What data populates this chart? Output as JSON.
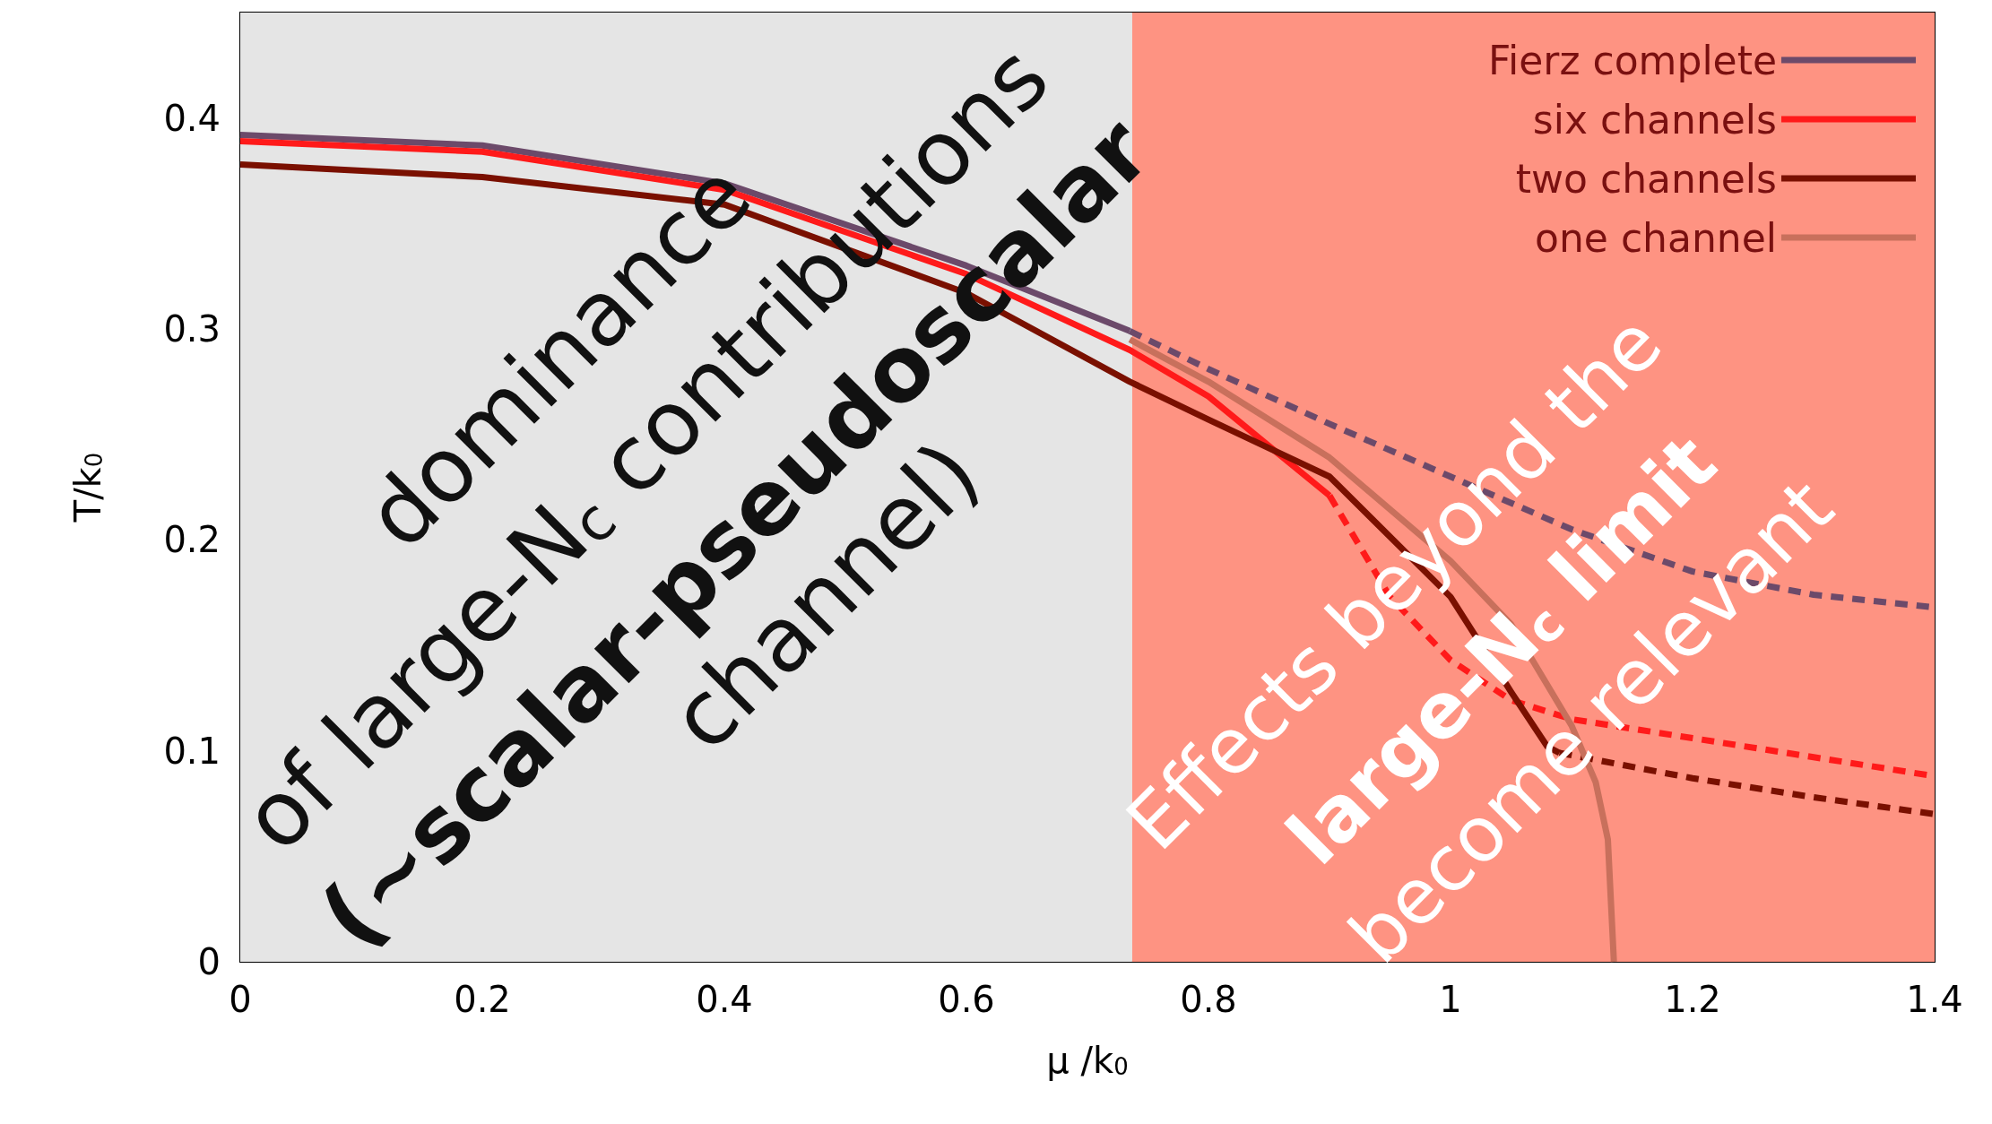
{
  "chart_data": {
    "type": "line",
    "xlabel": "μ /k$_{0}$",
    "ylabel": "T/k$_{0}$",
    "xlim": [
      0,
      1.4
    ],
    "xticks": [
      0,
      0.2,
      0.4,
      0.6,
      0.8,
      1,
      1.2,
      1.4
    ],
    "ylim": [
      0,
      0.45
    ],
    "yticks": [
      0,
      0.1,
      0.2,
      0.3,
      0.4
    ],
    "legend": "top right",
    "grid": false,
    "bands": [
      {
        "axis": "x",
        "from": 0,
        "to": 0.737,
        "color": "#e5e5e5"
      },
      {
        "axis": "x",
        "from": 0.737,
        "to": 1.4,
        "color": "#fe9382"
      }
    ],
    "series": [
      {
        "name": "Fierz complete",
        "color": "#6c4a6a",
        "line_style": "solid",
        "x": [
          0,
          0.2,
          0.4,
          0.6,
          0.735
        ],
        "values": [
          0.392,
          0.387,
          0.369,
          0.33,
          0.299
        ]
      },
      {
        "color": "#6c4a6a",
        "line_style": "dashed",
        "x": [
          0.735,
          0.8,
          0.9,
          1.0,
          1.1,
          1.2,
          1.3,
          1.4
        ],
        "values": [
          0.299,
          0.281,
          0.255,
          0.23,
          0.205,
          0.185,
          0.174,
          0.168
        ]
      },
      {
        "name": "six channels",
        "color": "#ff1a1a",
        "line_style": "solid",
        "x": [
          0,
          0.2,
          0.4,
          0.6,
          0.735,
          0.8,
          0.9
        ],
        "values": [
          0.389,
          0.384,
          0.366,
          0.326,
          0.29,
          0.268,
          0.221
        ]
      },
      {
        "color": "#ff1a1a",
        "line_style": "dashed",
        "x": [
          0.9,
          0.95,
          1.0,
          1.05,
          1.1,
          1.2,
          1.3,
          1.4
        ],
        "values": [
          0.221,
          0.173,
          0.143,
          0.124,
          0.115,
          0.106,
          0.097,
          0.088
        ]
      },
      {
        "name": "two channels",
        "color": "#7a1000",
        "line_style": "solid",
        "x": [
          0,
          0.2,
          0.4,
          0.6,
          0.735,
          0.8,
          0.9,
          1.0,
          1.05,
          1.08,
          1.09
        ],
        "values": [
          0.378,
          0.372,
          0.359,
          0.317,
          0.275,
          0.257,
          0.23,
          0.173,
          0.128,
          0.102,
          0.099
        ]
      },
      {
        "color": "#7a1000",
        "line_style": "dashed",
        "x": [
          1.09,
          1.2,
          1.3,
          1.4
        ],
        "values": [
          0.099,
          0.087,
          0.078,
          0.07
        ]
      },
      {
        "name": "one channel",
        "color": "#c8705c",
        "line_style": "solid",
        "x": [
          0.735,
          0.8,
          0.9,
          1.0,
          1.05,
          1.1,
          1.12,
          1.13,
          1.135
        ],
        "values": [
          0.295,
          0.275,
          0.239,
          0.19,
          0.16,
          0.112,
          0.085,
          0.058,
          0
        ]
      }
    ],
    "annotations": [
      "dominance",
      "of large-N$_{c}$ contributions",
      "(~scalar-pseudoscalar",
      "channel)",
      "Effects beyond the",
      "large-N$_{c}$ limit",
      "become relevant"
    ]
  }
}
